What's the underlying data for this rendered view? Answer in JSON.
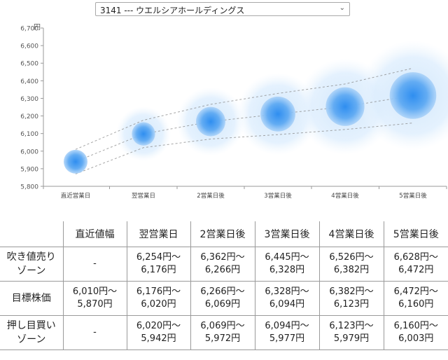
{
  "selector": {
    "selected": "3141 --- ウエルシアホールディングス",
    "icon": "chevron-down-icon"
  },
  "chart_data": {
    "type": "bubble-range",
    "ylabel": "円",
    "ylim": [
      5800,
      6700
    ],
    "yticks": [
      "5,800",
      "5,900",
      "6,000",
      "6,100",
      "6,200",
      "6,300",
      "6,400",
      "6,500",
      "6,600",
      "6,700"
    ],
    "yticks_values": [
      5800,
      5900,
      6000,
      6100,
      6200,
      6300,
      6400,
      6500,
      6600,
      6700
    ],
    "categories": [
      "直近営業日",
      "翌営業日",
      "2営業日後",
      "3営業日後",
      "4営業日後",
      "5営業日後"
    ],
    "target": [
      5940,
      6098,
      6168,
      6211,
      6253,
      6316
    ],
    "upper": [
      6010,
      6176,
      6266,
      6328,
      6382,
      6472
    ],
    "lower": [
      5870,
      6020,
      6069,
      6094,
      6123,
      6160
    ],
    "outer_upper": [
      6010,
      6254,
      6362,
      6445,
      6526,
      6628
    ],
    "outer_lower": [
      5870,
      5942,
      5972,
      5977,
      5979,
      6003
    ],
    "grid": false,
    "legend": "none",
    "colors": {
      "core": "#4a9ff0",
      "halo": "#cfe6fc",
      "axis": "#999999",
      "dash": "#888888"
    }
  },
  "table": {
    "header": [
      "",
      "直近値幅",
      "翌営業日",
      "2営業日後",
      "3営業日後",
      "4営業日後",
      "5営業日後"
    ],
    "rows": [
      {
        "label": [
          "吹き値売り",
          "ゾーン"
        ],
        "cells": [
          [
            "-"
          ],
          [
            "6,254円〜",
            "6,176円"
          ],
          [
            "6,362円〜",
            "6,266円"
          ],
          [
            "6,445円〜",
            "6,328円"
          ],
          [
            "6,526円〜",
            "6,382円"
          ],
          [
            "6,628円〜",
            "6,472円"
          ]
        ]
      },
      {
        "label": [
          "目標株価"
        ],
        "cells": [
          [
            "6,010円〜",
            "5,870円"
          ],
          [
            "6,176円〜",
            "6,020円"
          ],
          [
            "6,266円〜",
            "6,069円"
          ],
          [
            "6,328円〜",
            "6,094円"
          ],
          [
            "6,382円〜",
            "6,123円"
          ],
          [
            "6,472円〜",
            "6,160円"
          ]
        ]
      },
      {
        "label": [
          "押し目買い",
          "ゾーン"
        ],
        "cells": [
          [
            "-"
          ],
          [
            "6,020円〜",
            "5,942円"
          ],
          [
            "6,069円〜",
            "5,972円"
          ],
          [
            "6,094円〜",
            "5,977円"
          ],
          [
            "6,123円〜",
            "5,979円"
          ],
          [
            "6,160円〜",
            "6,003円"
          ]
        ]
      }
    ]
  }
}
